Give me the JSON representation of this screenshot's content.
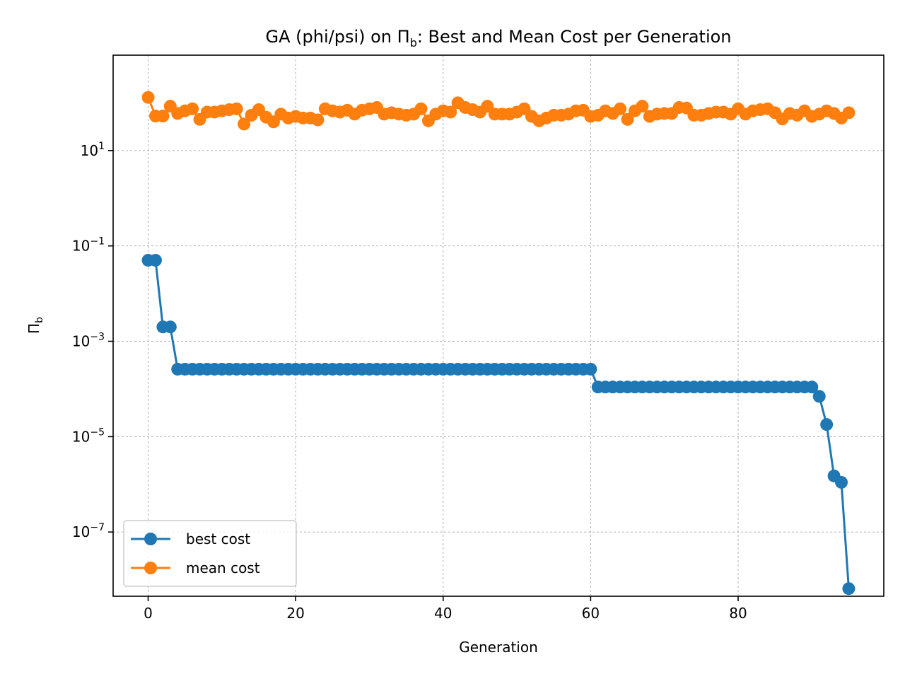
{
  "chart_data": {
    "type": "line",
    "title": "GA (phi/psi) on Π_b: Best and Mean Cost per Generation",
    "title_parts": {
      "prefix": "GA (phi/psi) on Π",
      "sub": "b",
      "suffix": ": Best and Mean Cost per Generation"
    },
    "xlabel": "Generation",
    "ylabel": "Π_b",
    "ylabel_parts": {
      "main": "Π",
      "sub": "b"
    },
    "xlim": [
      -4.75,
      99.75
    ],
    "ylim": [
      4.5e-09,
      1000
    ],
    "yscale": "log",
    "grid": true,
    "legend_position": "lower-left",
    "x_ticks": [
      0,
      20,
      40,
      60,
      80
    ],
    "x_tick_labels": [
      "0",
      "20",
      "40",
      "60",
      "80"
    ],
    "y_ticks": [
      {
        "value": 10,
        "base": "10",
        "exp": "1"
      },
      {
        "value": 0.1,
        "base": "10",
        "exp": "−1"
      },
      {
        "value": 0.001,
        "base": "10",
        "exp": "−3"
      },
      {
        "value": 1e-05,
        "base": "10",
        "exp": "−5"
      },
      {
        "value": 1e-07,
        "base": "10",
        "exp": "−7"
      }
    ],
    "x": [
      0,
      1,
      2,
      3,
      4,
      5,
      6,
      7,
      8,
      9,
      10,
      11,
      12,
      13,
      14,
      15,
      16,
      17,
      18,
      19,
      20,
      21,
      22,
      23,
      24,
      25,
      26,
      27,
      28,
      29,
      30,
      31,
      32,
      33,
      34,
      35,
      36,
      37,
      38,
      39,
      40,
      41,
      42,
      43,
      44,
      45,
      46,
      47,
      48,
      49,
      50,
      51,
      52,
      53,
      54,
      55,
      56,
      57,
      58,
      59,
      60,
      61,
      62,
      63,
      64,
      65,
      66,
      67,
      68,
      69,
      70,
      71,
      72,
      73,
      74,
      75,
      76,
      77,
      78,
      79,
      80,
      81,
      82,
      83,
      84,
      85,
      86,
      87,
      88,
      89,
      90,
      91,
      92,
      93,
      94,
      95
    ],
    "series": [
      {
        "name": "best cost",
        "color": "#1f77b4",
        "values": [
          0.05,
          0.05,
          0.002,
          0.002,
          0.00026,
          0.00026,
          0.00026,
          0.00026,
          0.00026,
          0.00026,
          0.00026,
          0.00026,
          0.00026,
          0.00026,
          0.00026,
          0.00026,
          0.00026,
          0.00026,
          0.00026,
          0.00026,
          0.00026,
          0.00026,
          0.00026,
          0.00026,
          0.00026,
          0.00026,
          0.00026,
          0.00026,
          0.00026,
          0.00026,
          0.00026,
          0.00026,
          0.00026,
          0.00026,
          0.00026,
          0.00026,
          0.00026,
          0.00026,
          0.00026,
          0.00026,
          0.00026,
          0.00026,
          0.00026,
          0.00026,
          0.00026,
          0.00026,
          0.00026,
          0.00026,
          0.00026,
          0.00026,
          0.00026,
          0.00026,
          0.00026,
          0.00026,
          0.00026,
          0.00026,
          0.00026,
          0.00026,
          0.00026,
          0.00026,
          0.00026,
          0.00011,
          0.00011,
          0.00011,
          0.00011,
          0.00011,
          0.00011,
          0.00011,
          0.00011,
          0.00011,
          0.00011,
          0.00011,
          0.00011,
          0.00011,
          0.00011,
          0.00011,
          0.00011,
          0.00011,
          0.00011,
          0.00011,
          0.00011,
          0.00011,
          0.00011,
          0.00011,
          0.00011,
          0.00011,
          0.00011,
          0.00011,
          0.00011,
          0.00011,
          0.00011,
          7e-05,
          1.8e-05,
          1.5e-06,
          1.1e-06,
          6.5e-09
        ]
      },
      {
        "name": "mean cost",
        "color": "#ff7f0e",
        "values": [
          130,
          53,
          53,
          85,
          60,
          68,
          75,
          45,
          64,
          64,
          68,
          72,
          75,
          36,
          55,
          72,
          50,
          40,
          58,
          48,
          52,
          48,
          48,
          44,
          75,
          68,
          64,
          70,
          58,
          70,
          75,
          80,
          58,
          62,
          58,
          55,
          58,
          75,
          42,
          58,
          68,
          64,
          100,
          80,
          72,
          64,
          85,
          58,
          58,
          58,
          64,
          75,
          52,
          42,
          48,
          55,
          55,
          58,
          68,
          70,
          52,
          55,
          68,
          60,
          75,
          45,
          68,
          85,
          52,
          58,
          60,
          60,
          80,
          78,
          55,
          55,
          60,
          64,
          64,
          58,
          75,
          58,
          68,
          72,
          75,
          62,
          46,
          60,
          55,
          68,
          52,
          58,
          68,
          60,
          48,
          62
        ]
      }
    ]
  }
}
